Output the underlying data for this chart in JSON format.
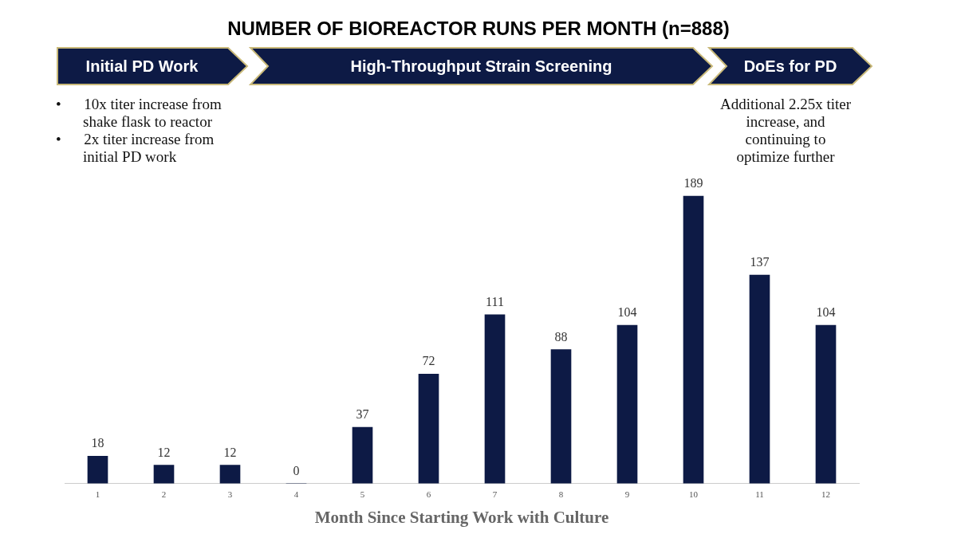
{
  "chart_data": {
    "type": "bar",
    "title": "NUMBER OF BIOREACTOR RUNS PER MONTH (n=888)",
    "xlabel": "Month Since Starting Work with Culture",
    "categories": [
      "1",
      "2",
      "3",
      "4",
      "5",
      "6",
      "7",
      "8",
      "9",
      "10",
      "11",
      "12"
    ],
    "values": [
      18,
      12,
      12,
      0,
      37,
      72,
      111,
      88,
      104,
      189,
      137,
      104
    ],
    "color": "#0d1a45",
    "data_labels": true,
    "grid": false,
    "tick_labels": "x",
    "annotations": [
      "Initial PD Work",
      "High-Throughput Strain Screening",
      "DoEs for PD",
      "• 10x titer increase from shake flask to reactor",
      "• 2x titer increase from initial PD work",
      "Additional 2.25x titer increase, and continuing to optimize further"
    ]
  }
}
